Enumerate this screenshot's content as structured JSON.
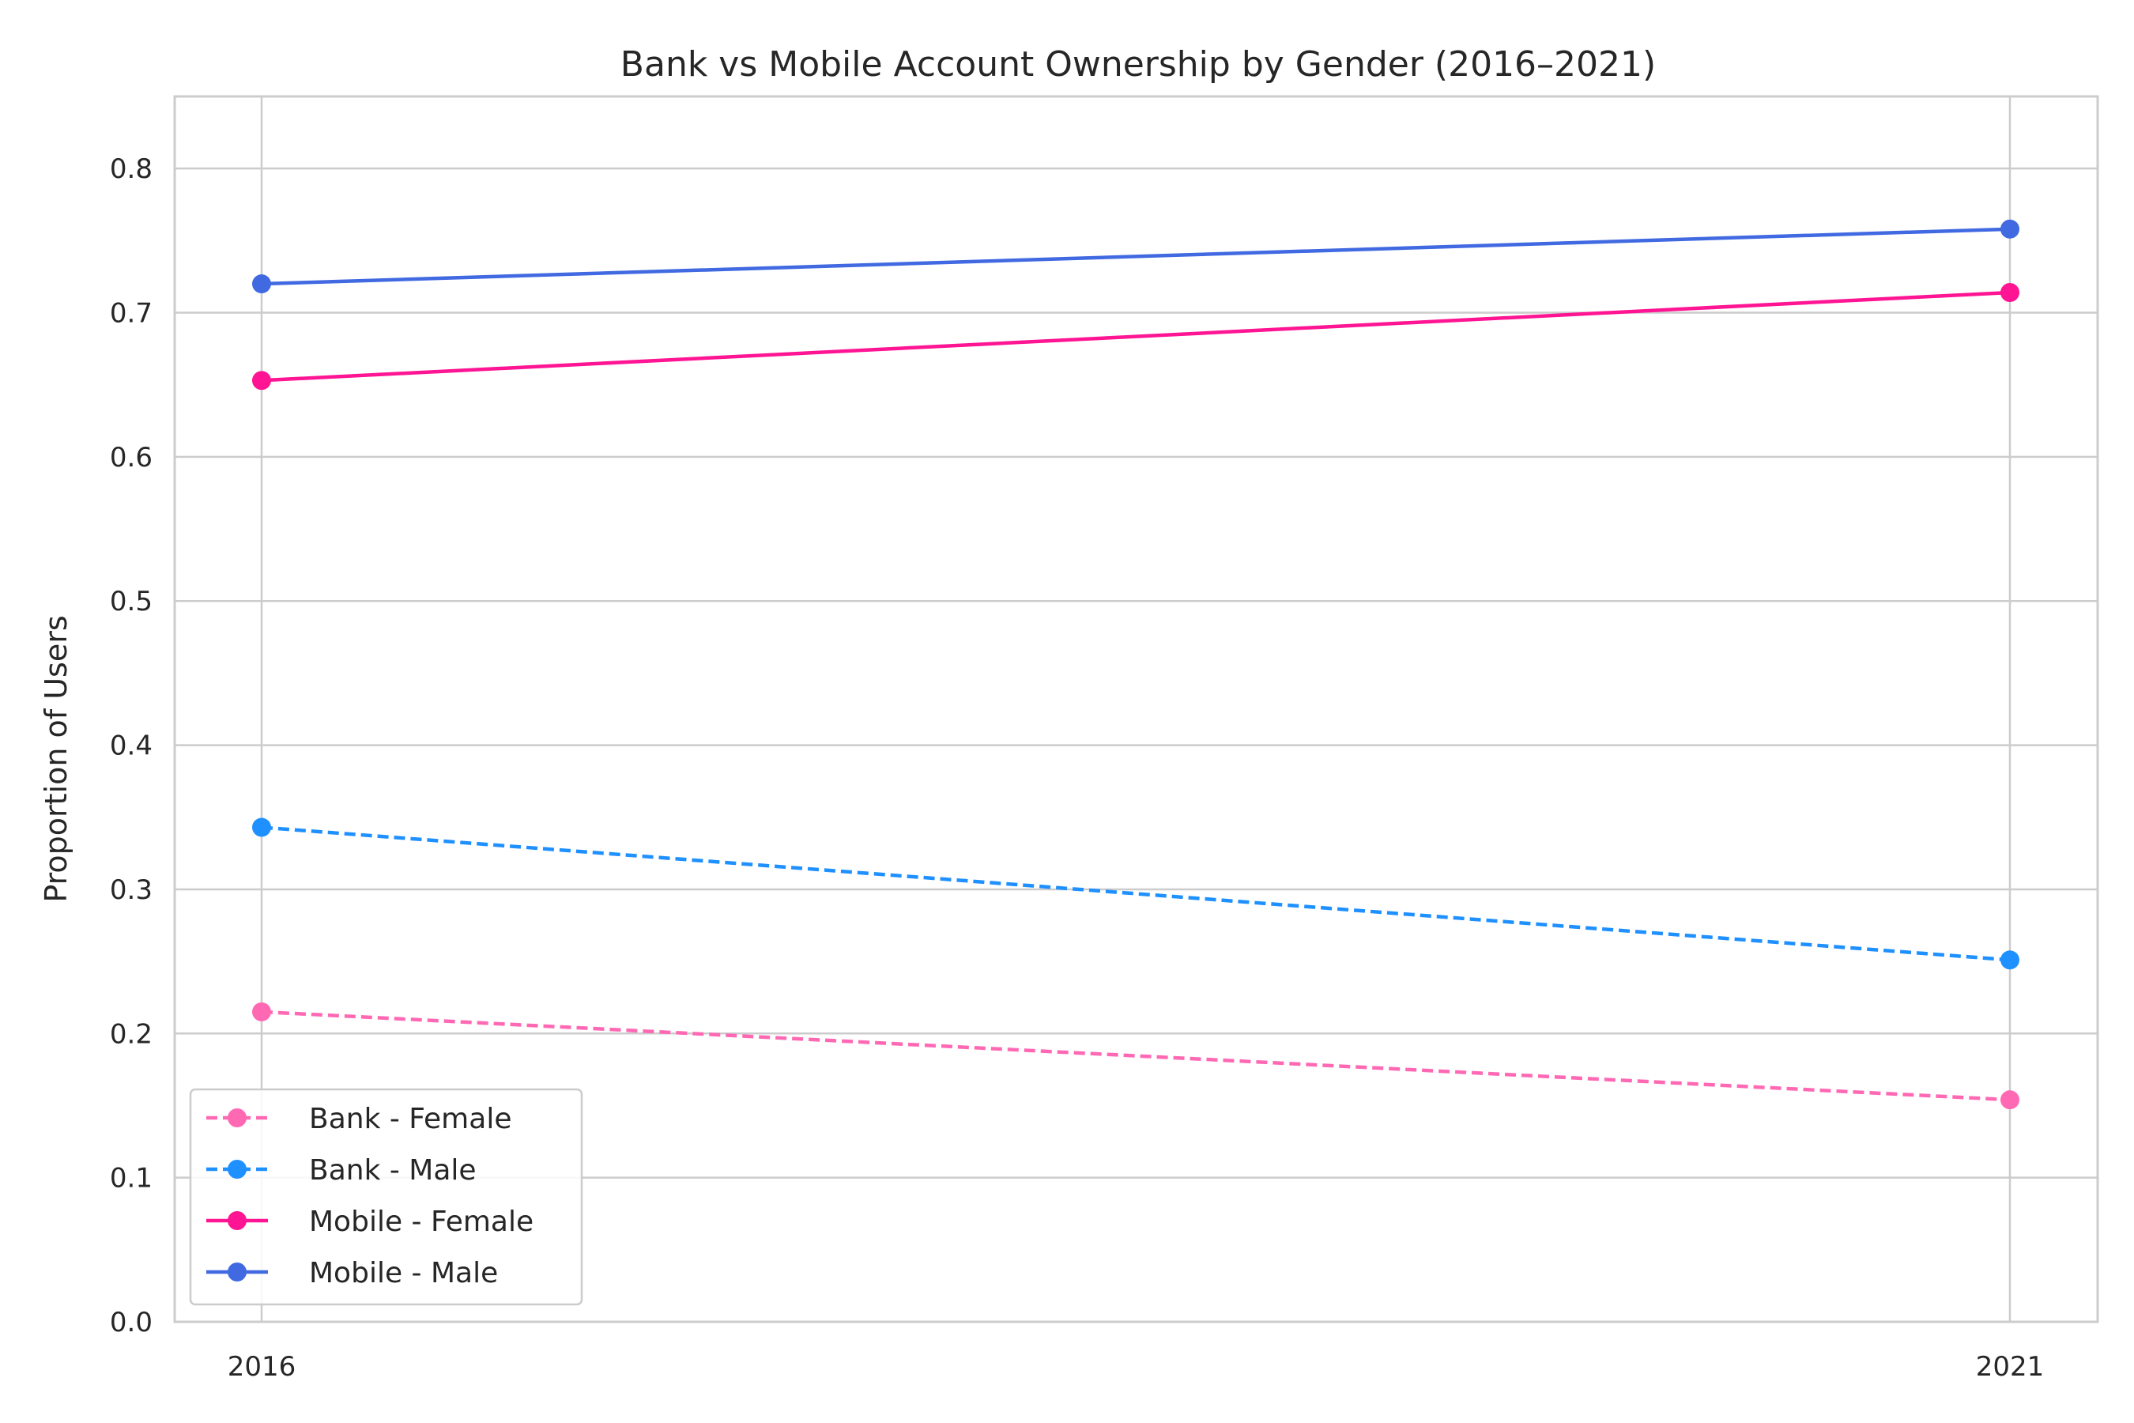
{
  "chart_data": {
    "type": "line",
    "title": "Bank vs Mobile Account Ownership by Gender (2016–2021)",
    "xlabel": "",
    "ylabel": "Proportion of Users",
    "x": [
      "2016",
      "2021"
    ],
    "ylim": [
      0,
      0.85
    ],
    "yticks": [
      "0.0",
      "0.1",
      "0.2",
      "0.3",
      "0.4",
      "0.5",
      "0.6",
      "0.7",
      "0.8"
    ],
    "grid": true,
    "legend_position": "lower-left",
    "series": [
      {
        "name": "Bank - Female",
        "values": [
          0.215,
          0.154
        ],
        "color": "#ff69b4",
        "style": "dashed"
      },
      {
        "name": "Bank - Male",
        "values": [
          0.343,
          0.251
        ],
        "color": "#1e90ff",
        "style": "dashed"
      },
      {
        "name": "Mobile - Female",
        "values": [
          0.653,
          0.714
        ],
        "color": "#ff1493",
        "style": "solid"
      },
      {
        "name": "Mobile - Male",
        "values": [
          0.72,
          0.758
        ],
        "color": "#4169e1",
        "style": "solid"
      }
    ]
  }
}
